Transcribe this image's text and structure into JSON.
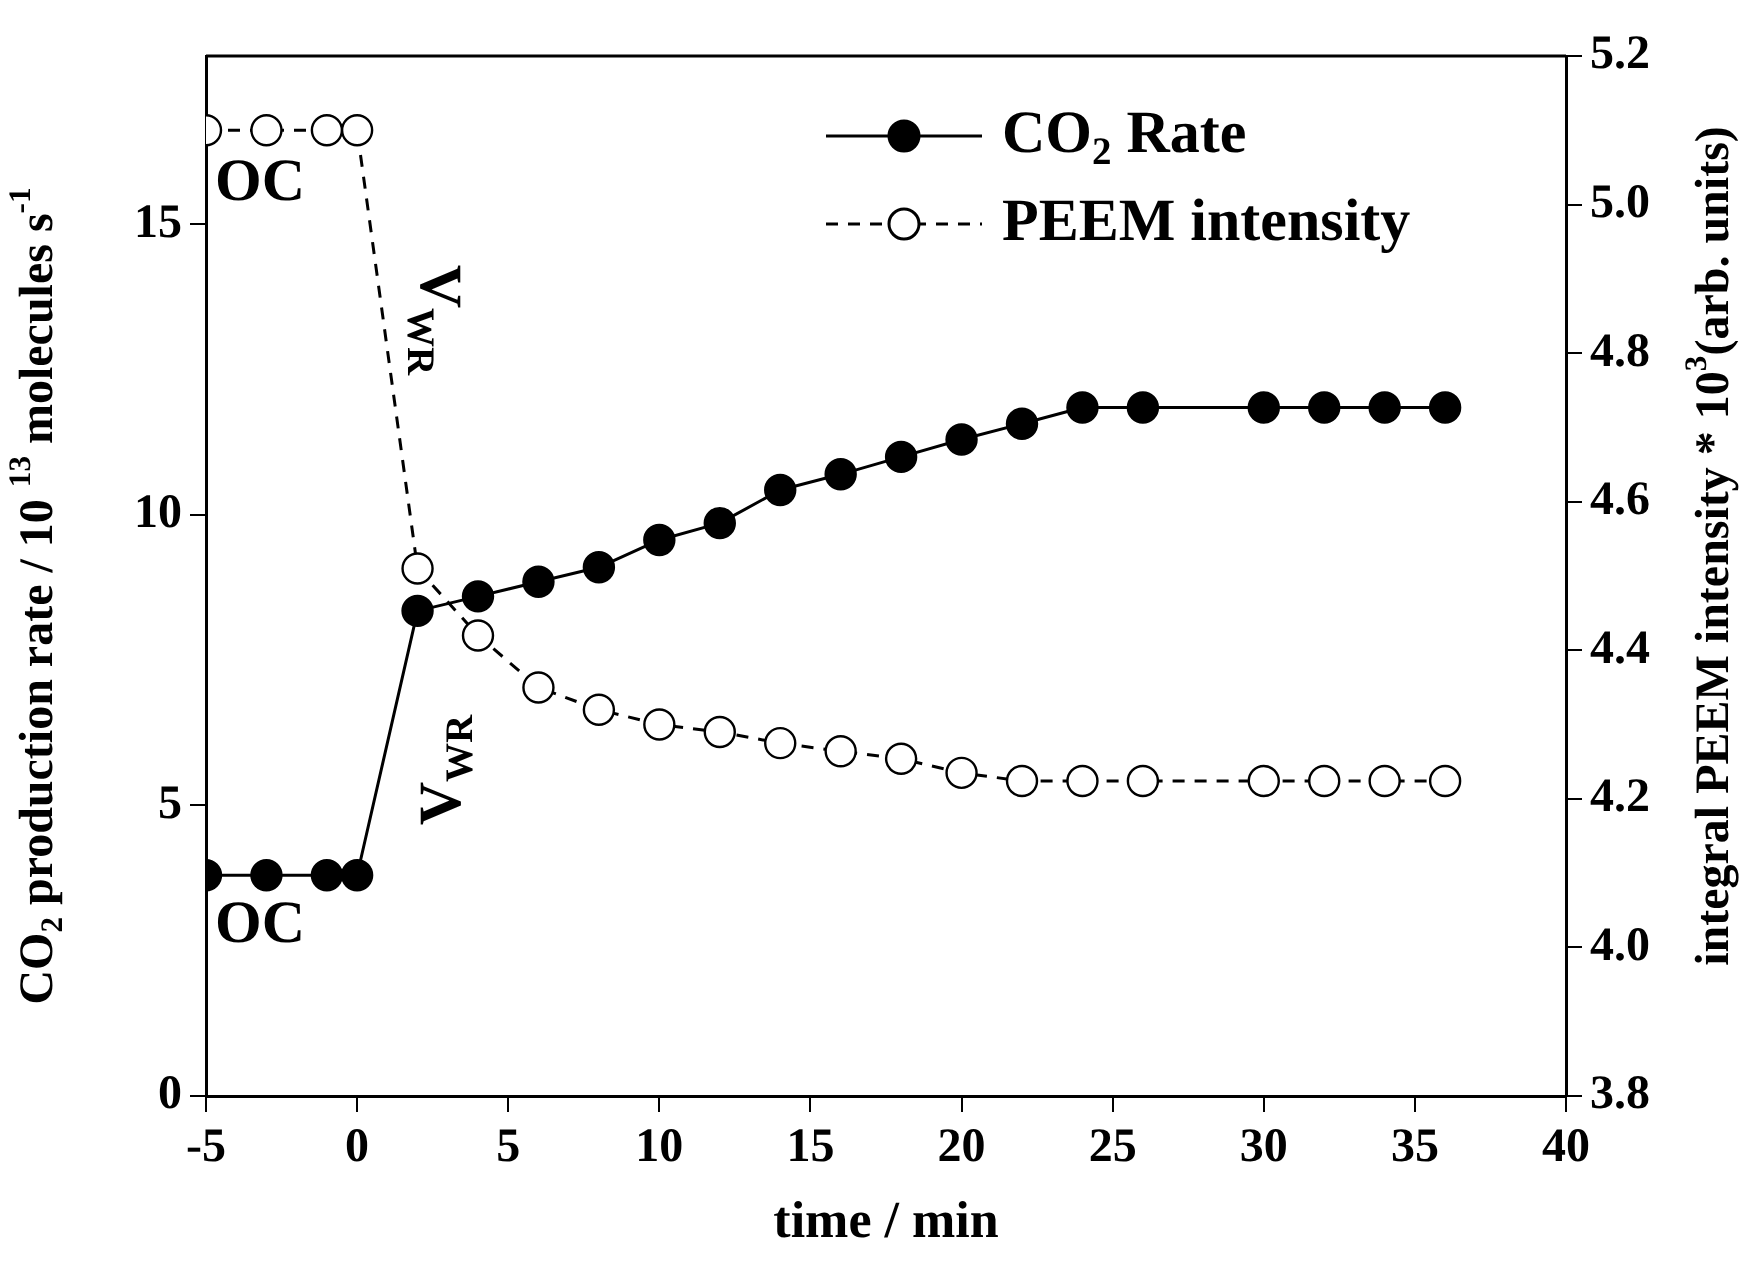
{
  "chart_data": {
    "type": "line",
    "xlabel": "time / min",
    "ylabel": "CO$_{2}$ production rate / 10 $^{13}$ molecules s$^{-1}$",
    "y2label": "integral PEEM intensity * 10$^{3}$(arb. units)",
    "xlim": [
      -5,
      40
    ],
    "xticks": [
      -5,
      0,
      5,
      10,
      15,
      20,
      25,
      30,
      35,
      40
    ],
    "ylim": [
      0,
      17.9
    ],
    "yticks": [
      0,
      5,
      10,
      15
    ],
    "y2lim": [
      3.8,
      5.2
    ],
    "y2ticks": [
      {
        "value": 3.8,
        "label": "3.8"
      },
      {
        "value": 4,
        "label": "4.0"
      },
      {
        "value": 4.2,
        "label": "4.2"
      },
      {
        "value": 4.4,
        "label": "4.4"
      },
      {
        "value": 4.6,
        "label": "4.6"
      },
      {
        "value": 4.8,
        "label": "4.8"
      },
      {
        "value": 5,
        "label": "5.0"
      },
      {
        "value": 5.2,
        "label": "5.2"
      }
    ],
    "x": [
      -5,
      -3,
      -1,
      0,
      2,
      4,
      6,
      8,
      10,
      12,
      14,
      16,
      18,
      20,
      22,
      24,
      26,
      30,
      32,
      34,
      36
    ],
    "series": [
      {
        "name": "CO$_{2}$ Rate",
        "color": "#000000",
        "marker": "circle",
        "line_style": "solid",
        "values": [
          3.8,
          3.8,
          3.8,
          3.8,
          8.35,
          8.6,
          8.85,
          9.1,
          9.57,
          9.86,
          10.43,
          10.7,
          11.0,
          11.3,
          11.57,
          11.85,
          11.85,
          11.85,
          11.85,
          11.85,
          11.85
        ]
      },
      {
        "name": "PEEM intensity",
        "color": "#000000",
        "marker": "circle",
        "line_style": "dashed",
        "axis": "y2",
        "values": [
          5.1,
          5.1,
          5.1,
          5.1,
          4.51,
          4.42,
          4.35,
          4.32,
          4.3,
          4.29,
          4.275,
          4.264,
          4.254,
          4.235,
          4.224,
          4.224,
          4.224,
          4.224,
          4.224,
          4.224,
          4.224
        ]
      }
    ],
    "legend": "top right",
    "annotations": [
      "OC",
      "OC",
      "V$_{WR}$",
      "V$_{WR}$"
    ]
  }
}
